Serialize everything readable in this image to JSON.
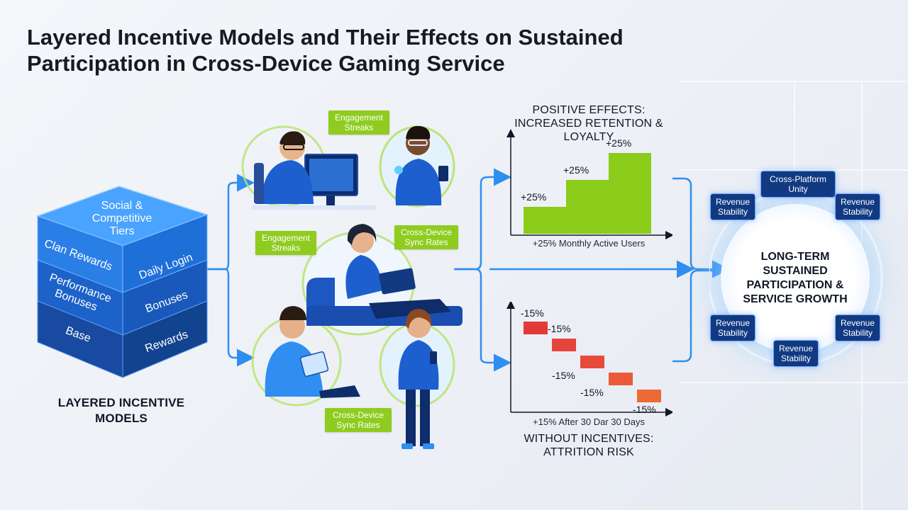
{
  "title": "Layered Incentive Models and Their Effects on Sustained Participation in Cross-Device Gaming Service",
  "cube": {
    "top_label": "Social & Competitive Tiers",
    "left_layers": [
      "Clan Rewards",
      "Performance Bonuses",
      "Base"
    ],
    "right_layers": [
      "Daily Login",
      "Bonuses",
      "Rewards"
    ],
    "caption": "LAYERED INCENTIVE MODELS"
  },
  "tags": {
    "top_engagement": "Engagement Streaks",
    "mid_engagement": "Engagement Streaks",
    "mid_sync": "Cross-Device Sync Rates",
    "bottom_sync": "Cross-Device Sync Rates"
  },
  "positive": {
    "title": "POSITIVE EFFECTS: INCREASED RETENTION & LOYALTY",
    "caption": "+25% Monthly Active Users",
    "bars": [
      {
        "label": "+25%",
        "value": 1
      },
      {
        "label": "+25%",
        "value": 2
      },
      {
        "label": "+25%",
        "value": 3
      }
    ]
  },
  "negative": {
    "title": "WITHOUT INCENTIVES: ATTRITION RISK",
    "caption": "+15% After 30 Dar 30 Days",
    "bars": [
      {
        "label": "-15%",
        "step": 1
      },
      {
        "label": "-15%",
        "step": 2
      },
      {
        "label": "-15%",
        "step": 3
      },
      {
        "label": "-15%",
        "step": 4
      },
      {
        "label": "-15%",
        "step": 5
      }
    ]
  },
  "hub": {
    "label": "LONG-TERM SUSTAINED PARTICIPATION & SERVICE GROWTH",
    "nodes": {
      "top": "Cross-Platform Unity",
      "upper_left": "Revenue Stability",
      "upper_right": "Revenue Stability",
      "lower_left": "Revenue Stability",
      "lower_right": "Revenue Stability",
      "bottom": "Revenue Stability"
    }
  },
  "colors": {
    "accent_blue": "#2f8ef0",
    "green": "#8ccc1a",
    "red": "#e84a3a",
    "navy": "#123a82",
    "cube_blue": "#1e6fd8"
  }
}
